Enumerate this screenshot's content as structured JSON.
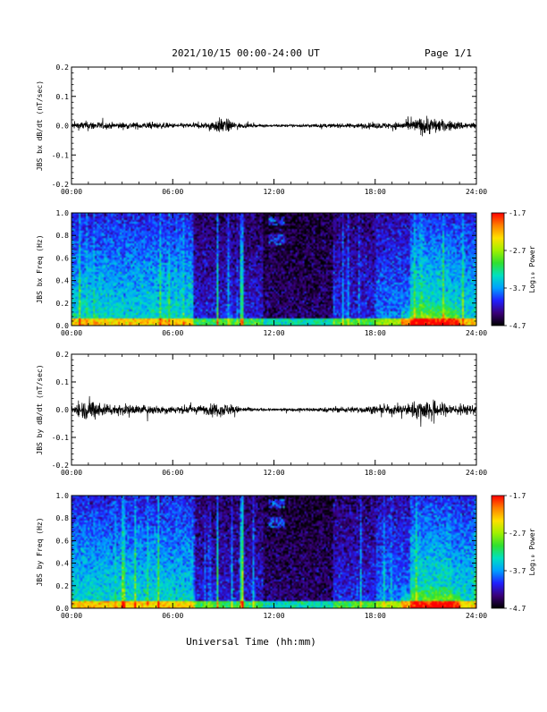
{
  "header": {
    "title": "2021/10/15  00:00-24:00 UT",
    "page": "Page 1/1"
  },
  "xlabel": "Universal Time (hh:mm)",
  "x_ticks": [
    "00:00",
    "06:00",
    "12:00",
    "18:00",
    "24:00"
  ],
  "colorbar": {
    "label": "Log₁₀ Power",
    "ticks": [
      "-1.7",
      "-2.7",
      "-3.7",
      "-4.7"
    ],
    "range": [
      -4.7,
      -1.7
    ],
    "colormap": [
      "#000000",
      "#3a0078",
      "#2020ff",
      "#00a0ff",
      "#00e0c0",
      "#30e030",
      "#a0f000",
      "#ffe000",
      "#ff8000",
      "#ff0000"
    ]
  },
  "chart_data": [
    {
      "type": "line",
      "title": "",
      "ylabel": "JBS bx dB/dt (nT/sec)",
      "xlim": [
        "00:00",
        "24:00"
      ],
      "ylim": [
        -0.2,
        0.2
      ],
      "y_ticks": [
        "0.2",
        "0.1",
        "0.0",
        "-0.1",
        "-0.2"
      ],
      "envelope": {
        "x_hours": [
          0,
          1,
          2,
          3,
          4,
          5,
          6,
          7,
          8,
          8.5,
          9,
          9.5,
          10,
          11,
          12,
          13,
          14,
          15,
          16,
          17,
          18,
          19,
          20,
          20.5,
          21,
          21.5,
          22,
          23,
          24
        ],
        "amplitude": [
          0.02,
          0.03,
          0.02,
          0.02,
          0.02,
          0.02,
          0.015,
          0.015,
          0.02,
          0.04,
          0.05,
          0.03,
          0.015,
          0.008,
          0.008,
          0.008,
          0.01,
          0.012,
          0.012,
          0.015,
          0.018,
          0.02,
          0.03,
          0.045,
          0.06,
          0.05,
          0.035,
          0.025,
          0.02
        ]
      }
    },
    {
      "type": "heatmap",
      "title": "",
      "ylabel": "JBS bx Freq (Hz)",
      "xlim": [
        "00:00",
        "24:00"
      ],
      "ylim": [
        0.0,
        1.0
      ],
      "y_ticks": [
        "1.0",
        "0.8",
        "0.6",
        "0.4",
        "0.2",
        "0.0"
      ],
      "value_label": "Log₁₀ Power",
      "value_range": [
        -4.7,
        -1.7
      ]
    },
    {
      "type": "line",
      "title": "",
      "ylabel": "JBS by dB/dt (nT/sec)",
      "xlim": [
        "00:00",
        "24:00"
      ],
      "ylim": [
        -0.2,
        0.2
      ],
      "y_ticks": [
        "0.2",
        "0.1",
        "0.0",
        "-0.1",
        "-0.2"
      ],
      "envelope": {
        "x_hours": [
          0,
          0.5,
          1,
          1.5,
          2,
          3,
          4,
          5,
          6,
          7,
          8,
          8.5,
          9,
          9.5,
          10,
          11,
          12,
          13,
          14,
          15,
          16,
          17,
          18,
          19,
          20,
          20.5,
          21,
          21.5,
          22,
          23,
          24
        ],
        "amplitude": [
          0.03,
          0.05,
          0.07,
          0.06,
          0.04,
          0.035,
          0.03,
          0.03,
          0.025,
          0.025,
          0.03,
          0.04,
          0.045,
          0.03,
          0.02,
          0.01,
          0.008,
          0.01,
          0.012,
          0.015,
          0.018,
          0.02,
          0.025,
          0.03,
          0.04,
          0.06,
          0.07,
          0.06,
          0.045,
          0.035,
          0.03
        ]
      }
    },
    {
      "type": "heatmap",
      "title": "",
      "ylabel": "JBS by Freq (Hz)",
      "xlim": [
        "00:00",
        "24:00"
      ],
      "ylim": [
        0.0,
        1.0
      ],
      "y_ticks": [
        "1.0",
        "0.8",
        "0.6",
        "0.4",
        "0.2",
        "0.0"
      ],
      "value_label": "Log₁₀ Power",
      "value_range": [
        -4.7,
        -1.7
      ]
    }
  ]
}
